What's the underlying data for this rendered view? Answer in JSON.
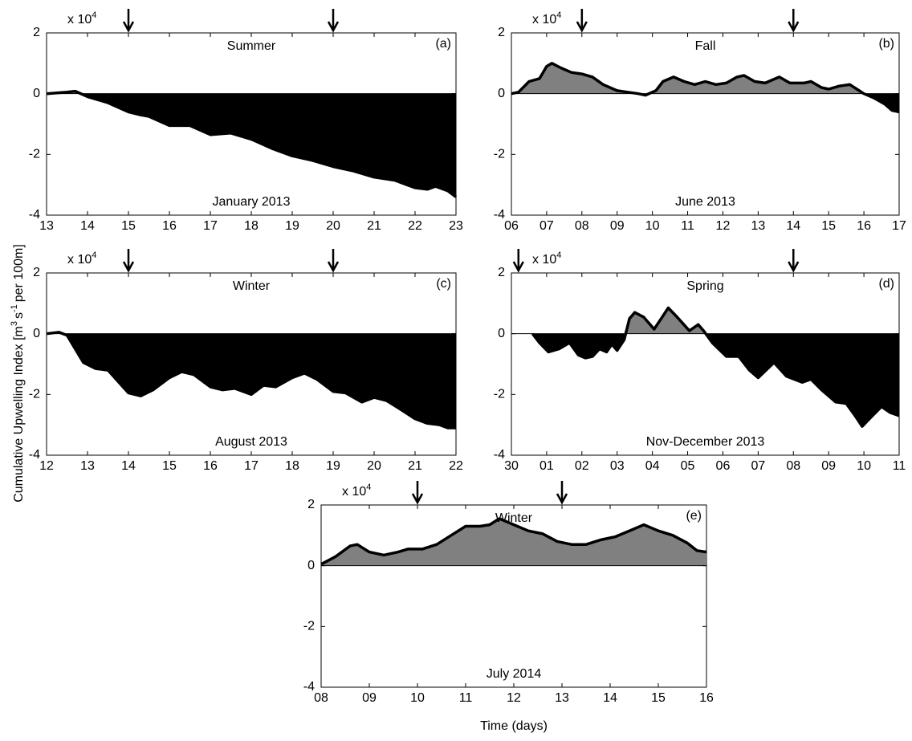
{
  "ylabel_parts": [
    {
      "text": "Cumulative Upwelling Index [m"
    },
    {
      "text": "3",
      "sup": true
    },
    {
      "text": "s"
    },
    {
      "text": "-1",
      "sup": true
    },
    {
      "text": "per 100m]"
    }
  ],
  "xlabel": "Time (days)",
  "chart_data": [
    {
      "type": "area",
      "title": "Summer",
      "panel_label": "(a)",
      "month_label": "January 2013",
      "y_multiplier": "x 10",
      "y_multiplier_exp": "4",
      "pos_color": "#808080",
      "neg_color": "#000000",
      "line_color": "#000000",
      "xlim": [
        13,
        23
      ],
      "ylim": [
        -4,
        2
      ],
      "xticks": [
        13,
        14,
        15,
        16,
        17,
        18,
        19,
        20,
        21,
        22,
        23
      ],
      "yticks": [
        -4,
        -2,
        0,
        2
      ],
      "arrows": [
        15,
        20
      ],
      "x": [
        13,
        13.5,
        13.7,
        14,
        14.5,
        15,
        15.3,
        15.5,
        16,
        16.5,
        17,
        17.5,
        18,
        18.5,
        19,
        19.5,
        20,
        20.5,
        21,
        21.5,
        22,
        22.3,
        22.5,
        22.8,
        23
      ],
      "values": [
        0,
        0.05,
        0.08,
        -0.1,
        -0.3,
        -0.6,
        -0.7,
        -0.75,
        -1.05,
        -1.05,
        -1.35,
        -1.3,
        -1.5,
        -1.8,
        -2.05,
        -2.2,
        -2.4,
        -2.55,
        -2.75,
        -2.85,
        -3.1,
        -3.15,
        -3.05,
        -3.2,
        -3.4
      ]
    },
    {
      "type": "area",
      "title": "Fall",
      "panel_label": "(b)",
      "month_label": "June 2013",
      "y_multiplier": "x 10",
      "y_multiplier_exp": "4",
      "pos_color": "#808080",
      "neg_color": "#000000",
      "line_color": "#000000",
      "xlim": [
        6,
        17
      ],
      "ylim": [
        -4,
        2
      ],
      "xticks": [
        {
          "value": 6,
          "label": "06"
        },
        {
          "value": 7,
          "label": "07"
        },
        {
          "value": 8,
          "label": "08"
        },
        {
          "value": 9,
          "label": "09"
        },
        10,
        11,
        12,
        13,
        14,
        15,
        16,
        17
      ],
      "yticks": [
        -4,
        -2,
        0,
        2
      ],
      "arrows": [
        8,
        14
      ],
      "x": [
        6,
        6.2,
        6.5,
        6.8,
        7,
        7.15,
        7.4,
        7.7,
        8,
        8.3,
        8.6,
        9,
        9.3,
        9.6,
        9.8,
        10.1,
        10.3,
        10.6,
        10.9,
        11.2,
        11.5,
        11.8,
        12.1,
        12.4,
        12.6,
        12.9,
        13.2,
        13.6,
        13.9,
        14.3,
        14.5,
        14.8,
        15,
        15.3,
        15.6,
        15.8,
        16,
        16.3,
        16.6,
        16.8,
        17
      ],
      "values": [
        0,
        0.05,
        0.4,
        0.5,
        0.9,
        1.0,
        0.85,
        0.7,
        0.65,
        0.55,
        0.3,
        0.1,
        0.05,
        0,
        -0.05,
        0.1,
        0.4,
        0.55,
        0.4,
        0.3,
        0.4,
        0.3,
        0.35,
        0.55,
        0.6,
        0.4,
        0.35,
        0.55,
        0.35,
        0.35,
        0.4,
        0.2,
        0.15,
        0.25,
        0.3,
        0.15,
        0,
        -0.15,
        -0.35,
        -0.55,
        -0.6
      ]
    },
    {
      "type": "area",
      "title": "Winter",
      "panel_label": "(c)",
      "month_label": "August 2013",
      "y_multiplier": "x 10",
      "y_multiplier_exp": "4",
      "pos_color": "#808080",
      "neg_color": "#000000",
      "line_color": "#000000",
      "xlim": [
        12,
        22
      ],
      "ylim": [
        -4,
        2
      ],
      "xticks": [
        12,
        13,
        14,
        15,
        16,
        17,
        18,
        19,
        20,
        21,
        22
      ],
      "yticks": [
        -4,
        -2,
        0,
        2
      ],
      "arrows": [
        14,
        19
      ],
      "x": [
        12,
        12.3,
        12.5,
        12.7,
        12.9,
        13.2,
        13.5,
        13.7,
        14,
        14.3,
        14.6,
        15,
        15.3,
        15.6,
        16,
        16.3,
        16.6,
        17,
        17.3,
        17.6,
        18,
        18.3,
        18.6,
        19,
        19.3,
        19.7,
        20,
        20.3,
        20.6,
        21,
        21.3,
        21.6,
        21.8,
        22
      ],
      "values": [
        0,
        0.05,
        -0.05,
        -0.5,
        -0.95,
        -1.15,
        -1.2,
        -1.5,
        -1.95,
        -2.05,
        -1.85,
        -1.45,
        -1.25,
        -1.35,
        -1.75,
        -1.85,
        -1.8,
        -2.0,
        -1.7,
        -1.75,
        -1.45,
        -1.3,
        -1.5,
        -1.9,
        -1.95,
        -2.25,
        -2.1,
        -2.2,
        -2.45,
        -2.8,
        -2.95,
        -3.0,
        -3.1,
        -3.1
      ]
    },
    {
      "type": "area",
      "title": "Spring",
      "panel_label": "(d)",
      "month_label": "Nov-December 2013",
      "y_multiplier": "x 10",
      "y_multiplier_exp": "4",
      "pos_color": "#808080",
      "neg_color": "#000000",
      "line_color": "#000000",
      "xlim": [
        30,
        41
      ],
      "ylim": [
        -4,
        2
      ],
      "xticks": [
        30,
        {
          "value": 31,
          "label": "01"
        },
        {
          "value": 32,
          "label": "02"
        },
        {
          "value": 33,
          "label": "03"
        },
        {
          "value": 34,
          "label": "04"
        },
        {
          "value": 35,
          "label": "05"
        },
        {
          "value": 36,
          "label": "06"
        },
        {
          "value": 37,
          "label": "07"
        },
        {
          "value": 38,
          "label": "08"
        },
        {
          "value": 39,
          "label": "09"
        },
        {
          "value": 40,
          "label": "10"
        },
        {
          "value": 41,
          "label": "11"
        }
      ],
      "yticks": [
        -4,
        -2,
        0,
        2
      ],
      "arrows": [
        30.2,
        38
      ],
      "x": [
        30.6,
        30.8,
        31.05,
        31.35,
        31.65,
        31.9,
        32.1,
        32.3,
        32.5,
        32.7,
        32.85,
        33.0,
        33.2,
        33.35,
        33.5,
        33.75,
        34.05,
        34.25,
        34.45,
        34.7,
        35.05,
        35.3,
        35.45,
        35.7,
        36.1,
        36.45,
        36.75,
        37.0,
        37.45,
        37.8,
        38.25,
        38.5,
        38.8,
        39.2,
        39.5,
        39.75,
        39.95,
        40.2,
        40.5,
        40.75,
        41
      ],
      "values": [
        0,
        -0.3,
        -0.6,
        -0.5,
        -0.3,
        -0.7,
        -0.8,
        -0.75,
        -0.5,
        -0.6,
        -0.35,
        -0.55,
        -0.2,
        0.5,
        0.7,
        0.55,
        0.15,
        0.5,
        0.85,
        0.55,
        0.1,
        0.3,
        0.1,
        -0.3,
        -0.75,
        -0.75,
        -1.2,
        -1.45,
        -0.95,
        -1.4,
        -1.6,
        -1.5,
        -1.85,
        -2.25,
        -2.3,
        -2.7,
        -3.05,
        -2.75,
        -2.4,
        -2.6,
        -2.7
      ]
    },
    {
      "type": "area",
      "title": "Winter",
      "panel_label": "(e)",
      "month_label": "July 2014",
      "y_multiplier": "x 10",
      "y_multiplier_exp": "4",
      "pos_color": "#808080",
      "neg_color": "#000000",
      "line_color": "#000000",
      "xlim": [
        8,
        16
      ],
      "ylim": [
        -4,
        2
      ],
      "xticks": [
        {
          "value": 8,
          "label": "08"
        },
        {
          "value": 9,
          "label": "09"
        },
        10,
        11,
        12,
        13,
        14,
        15,
        16
      ],
      "yticks": [
        -4,
        -2,
        0,
        2
      ],
      "arrows": [
        10,
        13
      ],
      "x": [
        8,
        8.3,
        8.6,
        8.75,
        9.0,
        9.3,
        9.6,
        9.8,
        10.1,
        10.4,
        10.7,
        11,
        11.3,
        11.5,
        11.7,
        12,
        12.3,
        12.6,
        12.9,
        13.2,
        13.5,
        13.8,
        14.1,
        14.4,
        14.7,
        15,
        15.3,
        15.6,
        15.8,
        16
      ],
      "values": [
        0.05,
        0.3,
        0.65,
        0.7,
        0.45,
        0.35,
        0.45,
        0.55,
        0.55,
        0.7,
        1.0,
        1.3,
        1.3,
        1.35,
        1.55,
        1.35,
        1.15,
        1.05,
        0.8,
        0.7,
        0.7,
        0.85,
        0.95,
        1.15,
        1.35,
        1.15,
        1.0,
        0.75,
        0.5,
        0.45
      ]
    }
  ]
}
